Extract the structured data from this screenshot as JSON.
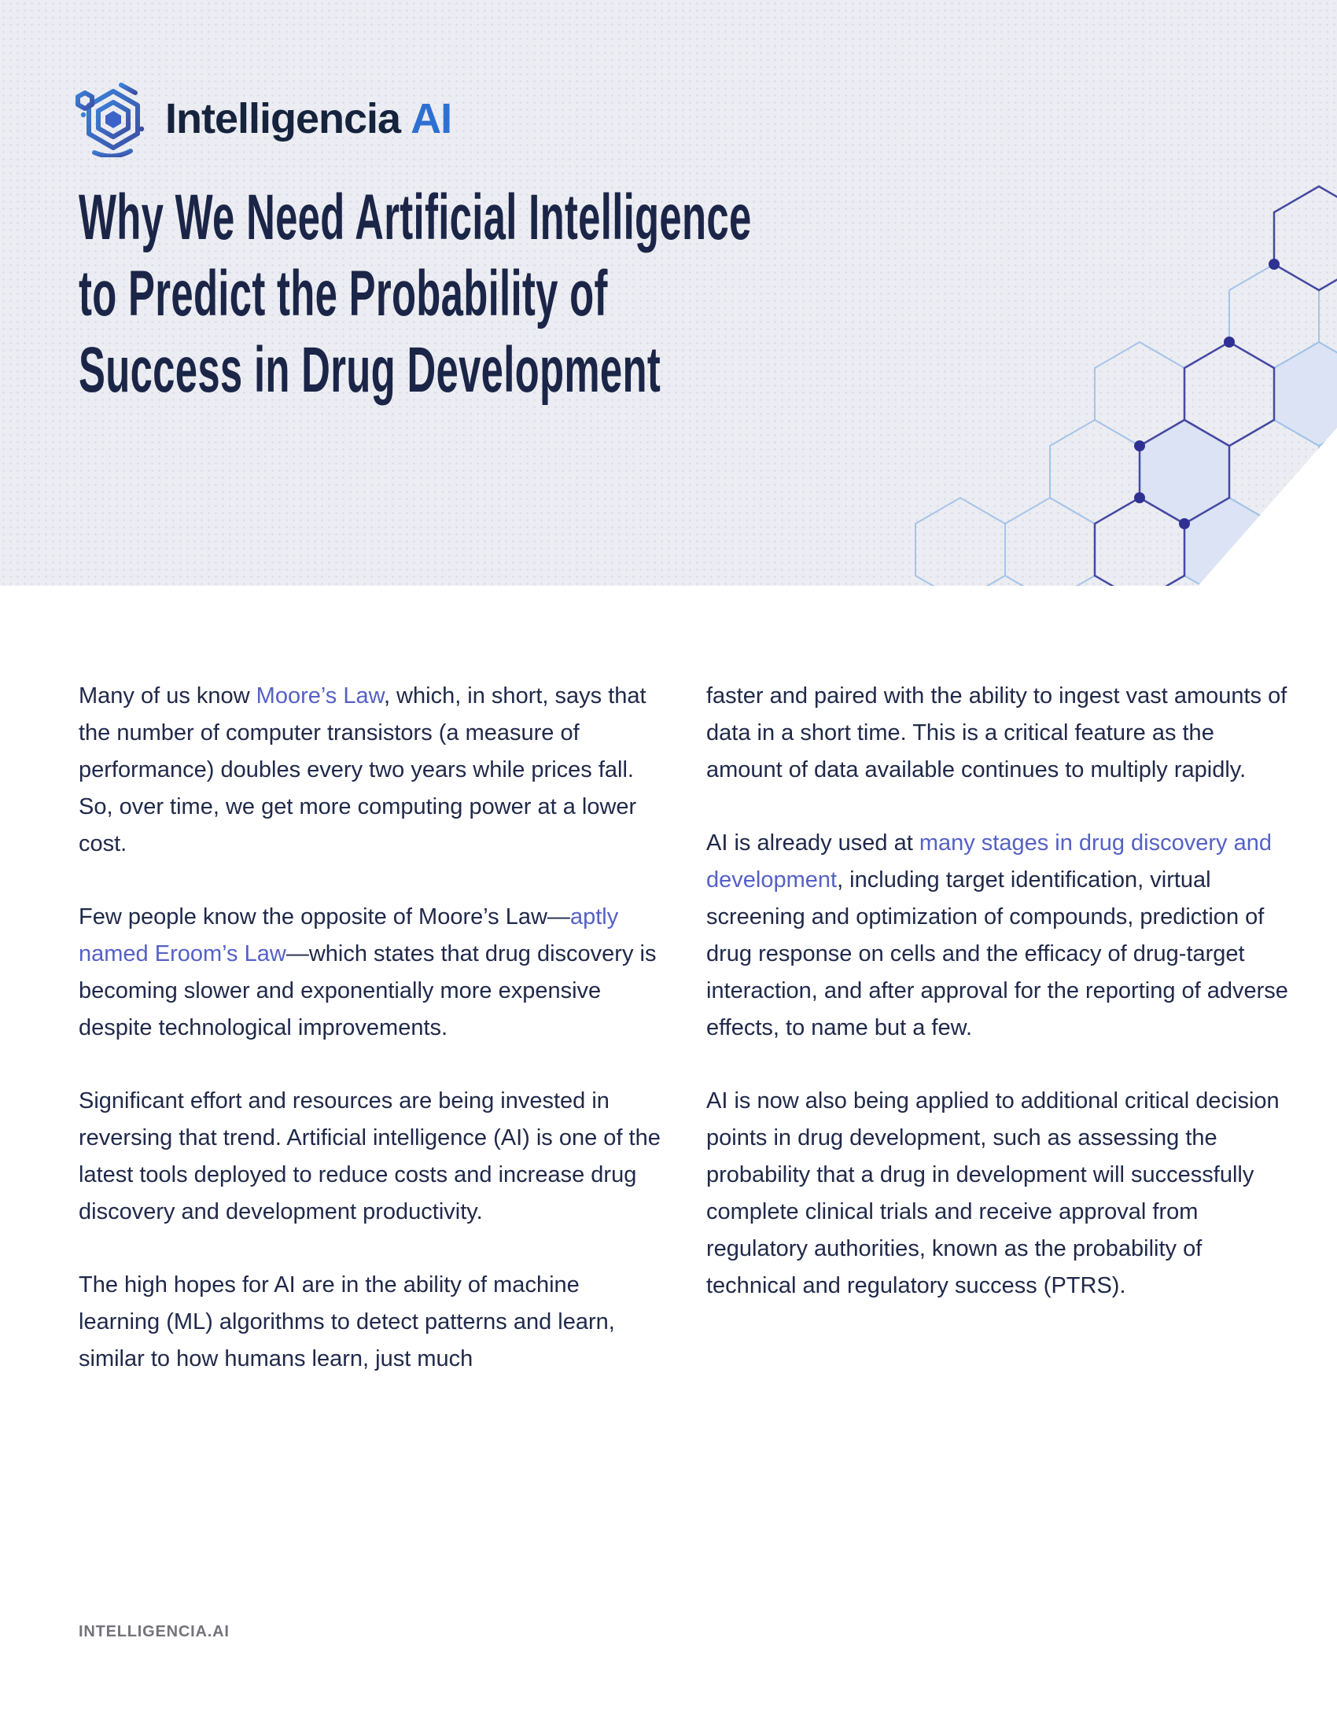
{
  "brand": {
    "name": "Intelligencia",
    "suffix": "AI",
    "icon": "hexagon-logo-icon"
  },
  "header": {
    "title_lines": [
      "Why We Need Artificial Intelligence",
      "to Predict the Probability of",
      "Success in Drug Development"
    ]
  },
  "article": {
    "columns": [
      {
        "paragraphs": [
          [
            {
              "t": "Many of us know "
            },
            {
              "t": "Moore’s Law",
              "link": true
            },
            {
              "t": ", which, in short, says that the number of computer transistors (a measure of performance) doubles every two years while prices fall. So, over time, we get more computing power at a lower cost."
            }
          ],
          [
            {
              "t": "Few people know the opposite of Moore’s Law—"
            },
            {
              "t": "aptly named Eroom’s Law",
              "link": true
            },
            {
              "t": "—which states that drug discovery is becoming slower and exponentially more expensive despite technological improvements."
            }
          ],
          [
            {
              "t": "Significant effort and resources are being invested in reversing that trend. Artificial intelligence (AI) is one of the latest tools deployed to reduce costs and increase drug discovery and development productivity."
            }
          ],
          [
            {
              "t": "The high hopes for AI are in the ability of machine learning (ML) algorithms to detect patterns and learn, similar to how humans learn, just much"
            }
          ]
        ]
      },
      {
        "paragraphs": [
          [
            {
              "t": "faster and paired with the ability to ingest vast amounts of data in a short time. This is a critical feature as the amount of data available continues to multiply rapidly."
            }
          ],
          [
            {
              "t": "AI is already used at "
            },
            {
              "t": "many stages in drug discovery and development",
              "link": true
            },
            {
              "t": ", including target identification, virtual screening and optimization of compounds, prediction of drug response on cells and the efficacy of drug-target interaction, and after approval for the reporting of adverse effects, to name but a few."
            }
          ],
          [
            {
              "t": "AI is now also being applied to additional critical decision points in drug development, such as assessing the probability that a drug in development will successfully complete clinical trials and receive approval from regulatory authorities, known as the probability of technical and regulatory success (PTRS)."
            }
          ]
        ]
      }
    ]
  },
  "footer": {
    "site": "INTELLIGENCIA.AI"
  },
  "colors": {
    "header_background": "#ecedf2",
    "title_text": "#1b2547",
    "body_text": "#20294a",
    "link_text": "#5561c6",
    "brand_navy": "#16233d",
    "brand_blue": "#2e70d2",
    "footer_gray": "#74727a",
    "hex_light_stroke": "#a6c4e9",
    "hex_indigo_stroke": "#4549a2",
    "hex_fill": "#dbe3f4",
    "hex_dot": "#2e3192"
  }
}
